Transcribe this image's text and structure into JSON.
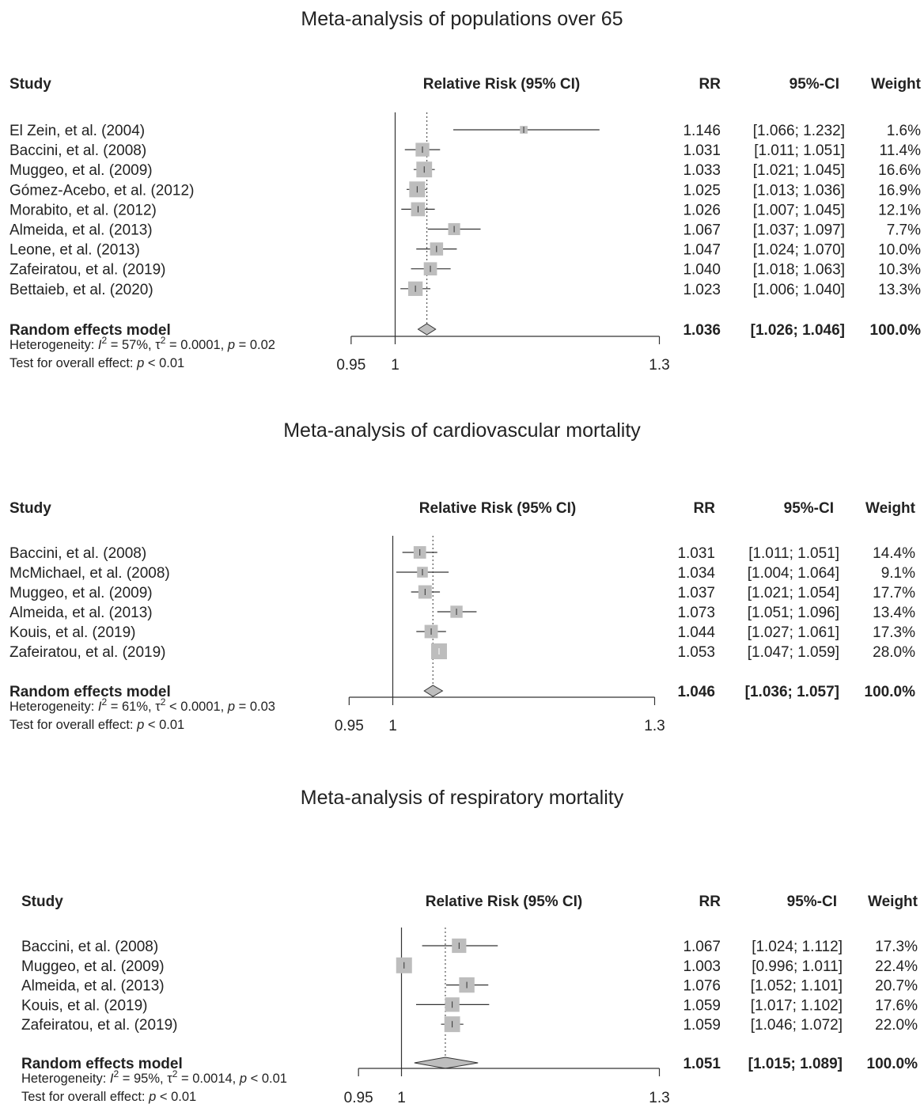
{
  "colors": {
    "box": "#bdbdbd",
    "line": "#333333",
    "diamond": "#bdbdbd",
    "text": "#222222"
  },
  "chart_data": [
    {
      "type": "forest",
      "title": "Meta-analysis of populations over 65",
      "headers": {
        "study": "Study",
        "effect": "Relative Risk (95% CI)",
        "rr": "RR",
        "ci": "95%-CI",
        "weight": "Weight"
      },
      "xlim": [
        0.95,
        1.3
      ],
      "xticks": [
        {
          "v": 0.95,
          "label": "0.95"
        },
        {
          "v": 1,
          "label": "1"
        },
        {
          "v": 1.3,
          "label": "1.3"
        }
      ],
      "studies": [
        {
          "name": "El Zein, et al. (2004)",
          "rr": 1.146,
          "lo": 1.066,
          "hi": 1.232,
          "rr_text": "1.146",
          "ci_text": "[1.066; 1.232]",
          "weight_text": "1.6%",
          "weight": 1.6
        },
        {
          "name": "Baccini, et al. (2008)",
          "rr": 1.031,
          "lo": 1.011,
          "hi": 1.051,
          "rr_text": "1.031",
          "ci_text": "[1.011; 1.051]",
          "weight_text": "11.4%",
          "weight": 11.4
        },
        {
          "name": "Muggeo, et al. (2009)",
          "rr": 1.033,
          "lo": 1.021,
          "hi": 1.045,
          "rr_text": "1.033",
          "ci_text": "[1.021; 1.045]",
          "weight_text": "16.6%",
          "weight": 16.6
        },
        {
          "name": "Gómez-Acebo, et al. (2012)",
          "rr": 1.025,
          "lo": 1.013,
          "hi": 1.036,
          "rr_text": "1.025",
          "ci_text": "[1.013; 1.036]",
          "weight_text": "16.9%",
          "weight": 16.9
        },
        {
          "name": "Morabito, et al. (2012)",
          "rr": 1.026,
          "lo": 1.007,
          "hi": 1.045,
          "rr_text": "1.026",
          "ci_text": "[1.007; 1.045]",
          "weight_text": "12.1%",
          "weight": 12.1
        },
        {
          "name": "Almeida, et al. (2013)",
          "rr": 1.067,
          "lo": 1.037,
          "hi": 1.097,
          "rr_text": "1.067",
          "ci_text": "[1.037; 1.097]",
          "weight_text": "7.7%",
          "weight": 7.7
        },
        {
          "name": "Leone, et al. (2013)",
          "rr": 1.047,
          "lo": 1.024,
          "hi": 1.07,
          "rr_text": "1.047",
          "ci_text": "[1.024; 1.070]",
          "weight_text": "10.0%",
          "weight": 10.0
        },
        {
          "name": "Zafeiratou, et al. (2019)",
          "rr": 1.04,
          "lo": 1.018,
          "hi": 1.063,
          "rr_text": "1.040",
          "ci_text": "[1.018; 1.063]",
          "weight_text": "10.3%",
          "weight": 10.3
        },
        {
          "name": "Bettaieb, et al. (2020)",
          "rr": 1.023,
          "lo": 1.006,
          "hi": 1.04,
          "rr_text": "1.023",
          "ci_text": "[1.006; 1.040]",
          "weight_text": "13.3%",
          "weight": 13.3
        }
      ],
      "summary": {
        "label": "Random effects model",
        "rr": 1.036,
        "lo": 1.026,
        "hi": 1.046,
        "rr_text": "1.036",
        "ci_text": "[1.026; 1.046]",
        "weight_text": "100.0%"
      },
      "heterogeneity": {
        "prefix": "Heterogeneity: ",
        "i2": "I",
        "i2_sup": "2",
        "i2_rest": " = 57%, ",
        "tau": "τ",
        "tau_sup": "2",
        "tau_rest": " = 0.0001, ",
        "p": "p",
        "p_rest": " = 0.02"
      },
      "overall": {
        "prefix": "Test for overall effect:  ",
        "p": "p",
        "p_rest": " < 0.01"
      }
    },
    {
      "type": "forest",
      "title": "Meta-analysis of cardiovascular mortality",
      "headers": {
        "study": "Study",
        "effect": "Relative Risk (95% CI)",
        "rr": "RR",
        "ci": "95%-CI",
        "weight": "Weight"
      },
      "xlim": [
        0.95,
        1.3
      ],
      "xticks": [
        {
          "v": 0.95,
          "label": "0.95"
        },
        {
          "v": 1,
          "label": "1"
        },
        {
          "v": 1.3,
          "label": "1.3"
        }
      ],
      "studies": [
        {
          "name": "Baccini, et al. (2008)",
          "rr": 1.031,
          "lo": 1.011,
          "hi": 1.051,
          "rr_text": "1.031",
          "ci_text": "[1.011; 1.051]",
          "weight_text": "14.4%",
          "weight": 14.4
        },
        {
          "name": "McMichael, et al. (2008)",
          "rr": 1.034,
          "lo": 1.004,
          "hi": 1.064,
          "rr_text": "1.034",
          "ci_text": "[1.004; 1.064]",
          "weight_text": "9.1%",
          "weight": 9.1
        },
        {
          "name": "Muggeo, et al. (2009)",
          "rr": 1.037,
          "lo": 1.021,
          "hi": 1.054,
          "rr_text": "1.037",
          "ci_text": "[1.021; 1.054]",
          "weight_text": "17.7%",
          "weight": 17.7
        },
        {
          "name": "Almeida, et al. (2013)",
          "rr": 1.073,
          "lo": 1.051,
          "hi": 1.096,
          "rr_text": "1.073",
          "ci_text": "[1.051; 1.096]",
          "weight_text": "13.4%",
          "weight": 13.4
        },
        {
          "name": "Kouis, et al. (2019)",
          "rr": 1.044,
          "lo": 1.027,
          "hi": 1.061,
          "rr_text": "1.044",
          "ci_text": "[1.027; 1.061]",
          "weight_text": "17.3%",
          "weight": 17.3
        },
        {
          "name": "Zafeiratou, et al. (2019)",
          "rr": 1.053,
          "lo": 1.047,
          "hi": 1.059,
          "rr_text": "1.053",
          "ci_text": "[1.047; 1.059]",
          "weight_text": "28.0%",
          "weight": 28.0
        }
      ],
      "summary": {
        "label": "Random effects model",
        "rr": 1.046,
        "lo": 1.036,
        "hi": 1.057,
        "rr_text": "1.046",
        "ci_text": "[1.036; 1.057]",
        "weight_text": "100.0%"
      },
      "heterogeneity": {
        "prefix": "Heterogeneity: ",
        "i2": "I",
        "i2_sup": "2",
        "i2_rest": " = 61%, ",
        "tau": "τ",
        "tau_sup": "2",
        "tau_rest": " < 0.0001, ",
        "p": "p",
        "p_rest": " = 0.03"
      },
      "overall": {
        "prefix": "Test for overall effect:  ",
        "p": "p",
        "p_rest": " < 0.01"
      }
    },
    {
      "type": "forest",
      "title": "Meta-analysis of respiratory mortality",
      "headers": {
        "study": "Study",
        "effect": "Relative Risk (95% CI)",
        "rr": "RR",
        "ci": "95%-CI",
        "weight": "Weight"
      },
      "xlim": [
        0.95,
        1.3
      ],
      "xticks": [
        {
          "v": 0.95,
          "label": "0.95"
        },
        {
          "v": 1,
          "label": "1"
        },
        {
          "v": 1.3,
          "label": "1.3"
        }
      ],
      "studies": [
        {
          "name": "Baccini, et al. (2008)",
          "rr": 1.067,
          "lo": 1.024,
          "hi": 1.112,
          "rr_text": "1.067",
          "ci_text": "[1.024; 1.112]",
          "weight_text": "17.3%",
          "weight": 17.3
        },
        {
          "name": "Muggeo, et al. (2009)",
          "rr": 1.003,
          "lo": 0.996,
          "hi": 1.011,
          "rr_text": "1.003",
          "ci_text": "[0.996; 1.011]",
          "weight_text": "22.4%",
          "weight": 22.4
        },
        {
          "name": "Almeida, et al. (2013)",
          "rr": 1.076,
          "lo": 1.052,
          "hi": 1.101,
          "rr_text": "1.076",
          "ci_text": "[1.052; 1.101]",
          "weight_text": "20.7%",
          "weight": 20.7
        },
        {
          "name": "Kouis, et al. (2019)",
          "rr": 1.059,
          "lo": 1.017,
          "hi": 1.102,
          "rr_text": "1.059",
          "ci_text": "[1.017; 1.102]",
          "weight_text": "17.6%",
          "weight": 17.6
        },
        {
          "name": "Zafeiratou, et al. (2019)",
          "rr": 1.059,
          "lo": 1.046,
          "hi": 1.072,
          "rr_text": "1.059",
          "ci_text": "[1.046; 1.072]",
          "weight_text": "22.0%",
          "weight": 22.0
        }
      ],
      "summary": {
        "label": "Random effects model",
        "rr": 1.051,
        "lo": 1.015,
        "hi": 1.089,
        "rr_text": "1.051",
        "ci_text": "[1.015; 1.089]",
        "weight_text": "100.0%"
      },
      "heterogeneity": {
        "prefix": "Heterogeneity: ",
        "i2": "I",
        "i2_sup": "2",
        "i2_rest": " = 95%, ",
        "tau": "τ",
        "tau_sup": "2",
        "tau_rest": " = 0.0014, ",
        "p": "p",
        "p_rest": " < 0.01"
      },
      "overall": {
        "prefix": "Test for overall effect:  ",
        "p": "p",
        "p_rest": " < 0.01"
      }
    }
  ]
}
